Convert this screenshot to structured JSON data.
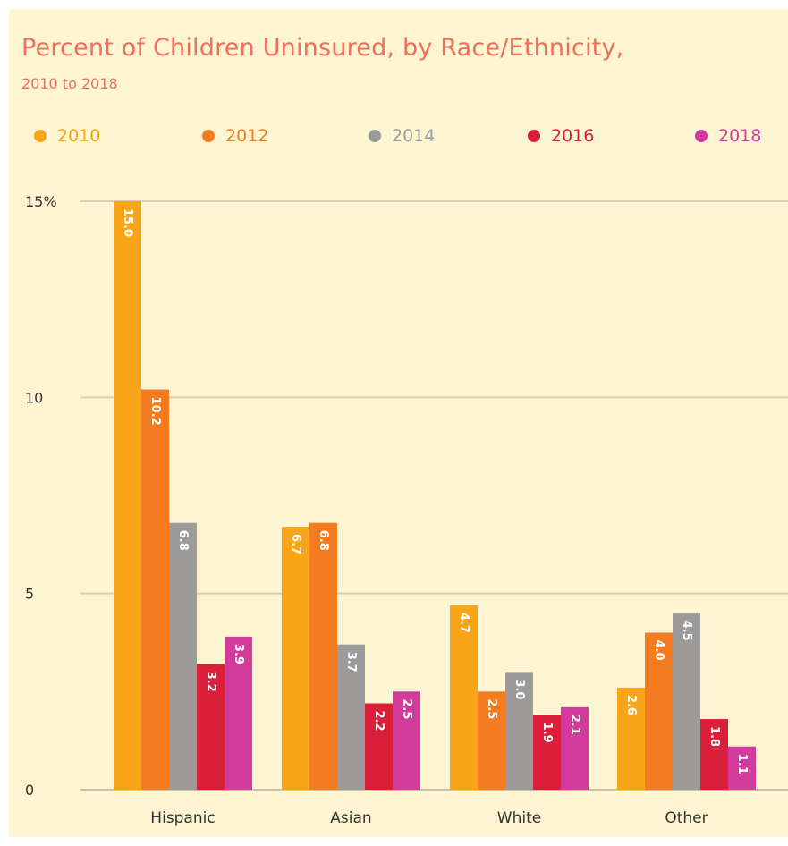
{
  "chart_data": {
    "type": "bar",
    "title": "Percent of Children Uninsured, by Race/Ethnicity,",
    "subtitle": "2010 to 2018",
    "categories": [
      "Hispanic",
      "Asian",
      "White",
      "Other"
    ],
    "series": [
      {
        "name": "2010",
        "color": "#f9a51a",
        "values": [
          15.0,
          6.7,
          4.7,
          2.6
        ]
      },
      {
        "name": "2012",
        "color": "#f47b20",
        "values": [
          10.2,
          6.8,
          2.5,
          4.0
        ]
      },
      {
        "name": "2014",
        "color": "#9d9b9a",
        "values": [
          6.8,
          3.7,
          3.0,
          4.5
        ]
      },
      {
        "name": "2016",
        "color": "#d91f3a",
        "values": [
          3.2,
          2.2,
          1.9,
          1.8
        ]
      },
      {
        "name": "2018",
        "color": "#d23b9b",
        "values": [
          3.9,
          2.5,
          2.1,
          1.1
        ]
      }
    ],
    "y_ticks": [
      {
        "value": 15,
        "label": "15%"
      },
      {
        "value": 10,
        "label": "10"
      },
      {
        "value": 5,
        "label": "5"
      },
      {
        "value": 0,
        "label": "0"
      }
    ],
    "ylim": [
      0,
      15
    ],
    "grid": true,
    "legend_position": "top"
  }
}
